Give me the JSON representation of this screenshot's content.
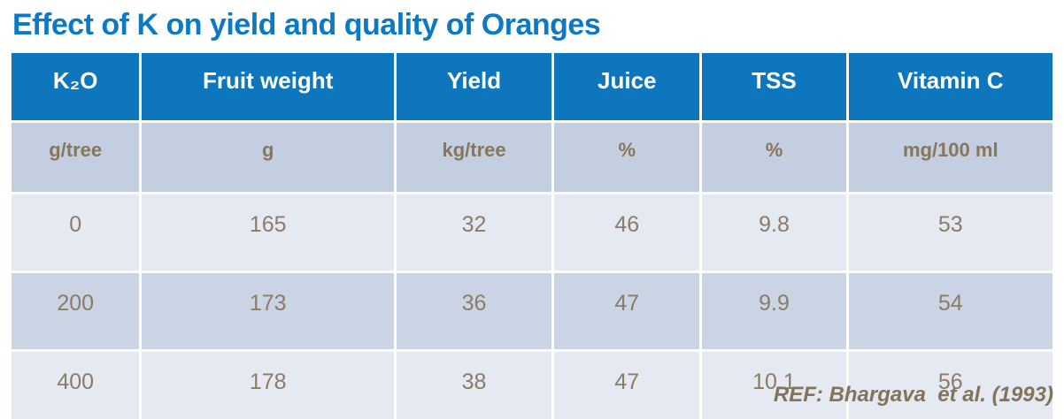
{
  "title": "Effect of K on yield and quality of Oranges",
  "footer": {
    "ref": "REF: Bhargava  et al. (1993)"
  },
  "colors": {
    "title_blue": "#0b79c6",
    "header_bg": "#0e76bd",
    "header_text": "#ffffff",
    "units_row_bg": "#c3cfe0",
    "row_light_bg": "#e4e9f2",
    "row_dark_bg": "#cad4e4",
    "body_text_brown": "#8b7c66"
  },
  "chart_data": {
    "type": "table",
    "title": "Effect of K on yield and quality of Oranges",
    "columns": [
      "K₂O",
      "Fruit weight",
      "Yield",
      "Juice",
      "TSS",
      "Vitamin C"
    ],
    "units": [
      "g/tree",
      "g",
      "kg/tree",
      "%",
      "%",
      "mg/100 ml"
    ],
    "rows": [
      [
        "0",
        "165",
        "32",
        "46",
        "9.8",
        "53"
      ],
      [
        "200",
        "173",
        "36",
        "47",
        "9.9",
        "54"
      ],
      [
        "400",
        "178",
        "38",
        "47",
        "10.1",
        "56"
      ]
    ],
    "source": "REF: Bhargava  et al. (1993)",
    "layout": {
      "banded_rows": true,
      "header_position": "top",
      "grid": "white separators"
    }
  }
}
